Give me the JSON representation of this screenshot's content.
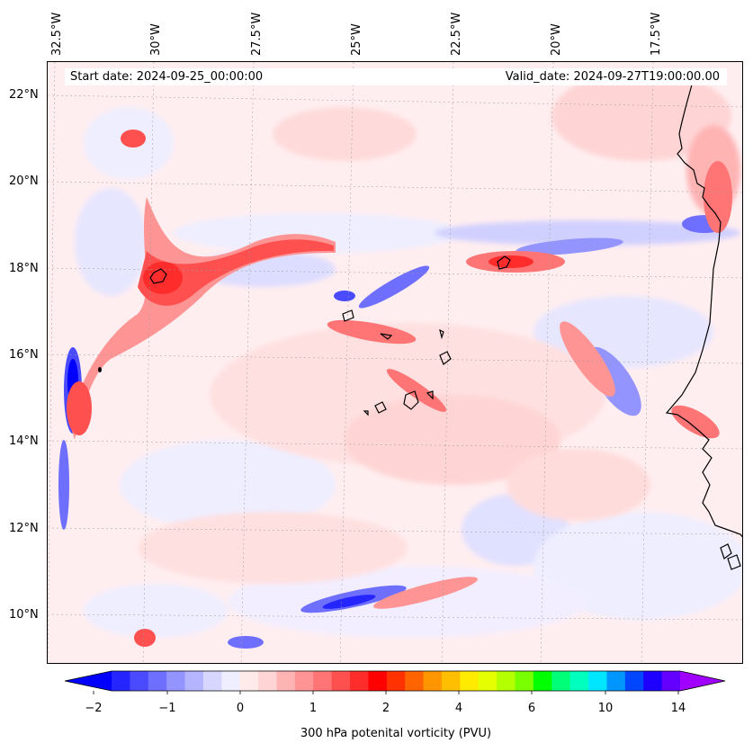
{
  "header": {
    "start_date": "Start date: 2024-09-25_00:00:00",
    "valid_date": "Valid_date: 2024-09-27T19:00:00.00"
  },
  "longitude_labels": [
    "32.5°W",
    "30°W",
    "27.5°W",
    "25°W",
    "22.5°W",
    "20°W",
    "17.5°W"
  ],
  "latitude_labels": [
    "22°N",
    "20°N",
    "18°N",
    "16°N",
    "14°N",
    "12°N",
    "10°N"
  ],
  "colorbar": {
    "label": "300 hPa potenital vorticity (PVU)",
    "tick_labels": [
      "−2",
      "−1",
      "0",
      "1",
      "2",
      "4",
      "6",
      "10",
      "14"
    ],
    "colors": [
      "#0000ff",
      "#2525ff",
      "#4a4aff",
      "#6f6fff",
      "#9494ff",
      "#b4b4ff",
      "#d6d6ff",
      "#eeeeff",
      "#ffeaea",
      "#ffd4d4",
      "#ffb4b4",
      "#ff9494",
      "#ff7474",
      "#ff5050",
      "#ff2c2c",
      "#ff0000",
      "#ff3200",
      "#ff6400",
      "#ff9600",
      "#ffbe00",
      "#ffeb00",
      "#e6ff00",
      "#b4ff00",
      "#78ff00",
      "#00ff00",
      "#00ff78",
      "#00ffbe",
      "#00e6ff",
      "#0096ff",
      "#0046ff",
      "#1e00ff",
      "#6400ff",
      "#a000ff"
    ]
  },
  "map_colors": {
    "background_pv": "#ffeef0",
    "coastline": "#000000"
  }
}
